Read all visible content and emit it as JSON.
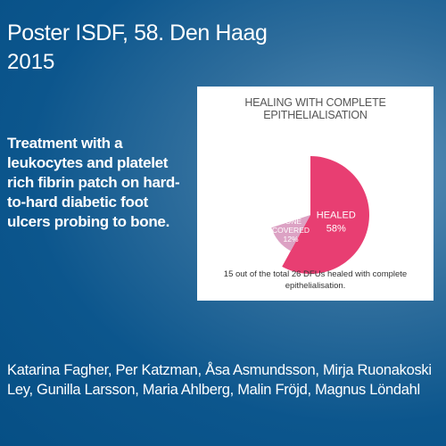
{
  "poster": {
    "title": "Poster ISDF, 58. Den Haag",
    "year": "2015",
    "description": "Treatment with a leukocytes and platelet rich fibrin patch on hard-to-hard diabetic foot ulcers probing to bone.",
    "authors": "Katarina Fagher, Per Katzman, Åsa Asmundsson, Mirja Ruonakoski Ley, Gunilla Larsson, Maria Ahlberg, Malin Fröjd, Magnus Löndahl"
  },
  "colors": {
    "healed": "#e83e72",
    "bone_covered": "#dca2c4"
  },
  "chart_data": {
    "type": "pie",
    "title": "HEALING WITH COMPLETE EPITHELIALISATION",
    "slices": [
      {
        "label": "HEALED",
        "value": 58,
        "value_label": "58%"
      },
      {
        "label": "BONE COVERED",
        "value": 12,
        "value_label": "12%"
      }
    ],
    "caption": "15 out of the total 26 DFUs healed with complete epithelialisation."
  }
}
